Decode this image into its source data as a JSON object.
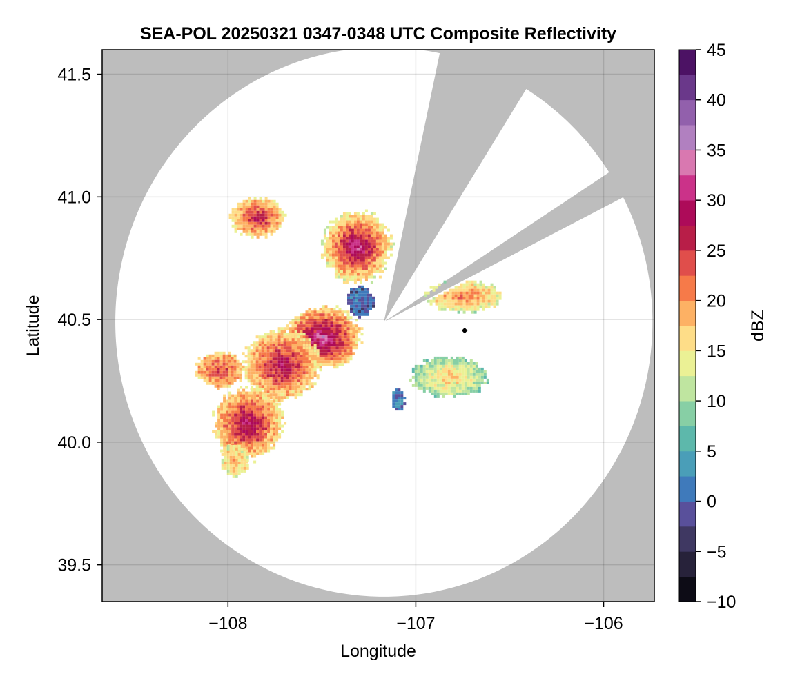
{
  "chart_data": {
    "type": "heatmap",
    "title": "SEA-POL 20250321 0347-0348 UTC Composite Reflectivity",
    "xlabel": "Longitude",
    "ylabel": "Latitude",
    "xlim": [
      -108.67,
      -105.73
    ],
    "ylim": [
      39.35,
      41.6
    ],
    "xticks": [
      -108,
      -107,
      -106
    ],
    "xtick_labels": [
      "−108",
      "−107",
      "−106"
    ],
    "yticks": [
      39.5,
      40.0,
      40.5,
      41.0,
      41.5
    ],
    "ytick_labels": [
      "39.5",
      "40.0",
      "40.5",
      "41.0",
      "41.5"
    ],
    "grid": true,
    "background_color": "#bdbdbd",
    "radar": {
      "center_lon": -107.17,
      "center_lat": 40.49,
      "max_range_lon_deg": 1.43,
      "max_range_lat_deg": 1.12,
      "blocked_sectors": [
        {
          "from_deg": 12,
          "to_deg": 32
        },
        {
          "from_deg": 57,
          "to_deg": 63
        }
      ],
      "blocked_sector_color": "#bdbdbd",
      "coverage_color": "#ffffff"
    },
    "colorbar": {
      "label": "dBZ",
      "range": [
        -10,
        45
      ],
      "step": 2.5,
      "ticks": [
        -10,
        -5,
        0,
        5,
        10,
        15,
        20,
        25,
        30,
        35,
        40,
        45
      ],
      "tick_labels": [
        "−10",
        "−5",
        "0",
        "5",
        "10",
        "15",
        "20",
        "25",
        "30",
        "35",
        "40",
        "45"
      ],
      "colormap": [
        "#000004",
        "#1f1b2e",
        "#3a3457",
        "#5a4f9a",
        "#3b7fbf",
        "#4fa8b5",
        "#66c2a5",
        "#abdda4",
        "#e6f598",
        "#fee08b",
        "#fdae61",
        "#f46d43",
        "#d53e4f",
        "#9e0142",
        "#c51b7d",
        "#de77ae",
        "#b080c0",
        "#8c5aa8",
        "#5c2a7e",
        "#3f0050"
      ]
    },
    "echo_regions": [
      {
        "lon": -107.85,
        "lat": 40.92,
        "r_lon": 0.16,
        "r_lat": 0.09,
        "peak_dbz": 28,
        "base_dbz": 14
      },
      {
        "lon": -107.32,
        "lat": 40.8,
        "r_lon": 0.2,
        "r_lat": 0.16,
        "peak_dbz": 32,
        "base_dbz": 12
      },
      {
        "lon": -107.5,
        "lat": 40.43,
        "r_lon": 0.22,
        "r_lat": 0.14,
        "peak_dbz": 33,
        "base_dbz": 14
      },
      {
        "lon": -107.72,
        "lat": 40.32,
        "r_lon": 0.22,
        "r_lat": 0.16,
        "peak_dbz": 29,
        "base_dbz": 14
      },
      {
        "lon": -107.9,
        "lat": 40.08,
        "r_lon": 0.2,
        "r_lat": 0.16,
        "peak_dbz": 30,
        "base_dbz": 14
      },
      {
        "lon": -108.05,
        "lat": 40.3,
        "r_lon": 0.14,
        "r_lat": 0.08,
        "peak_dbz": 25,
        "base_dbz": 16
      },
      {
        "lon": -106.83,
        "lat": 40.27,
        "r_lon": 0.22,
        "r_lat": 0.09,
        "peak_dbz": 18,
        "base_dbz": 8
      },
      {
        "lon": -106.75,
        "lat": 40.6,
        "r_lon": 0.22,
        "r_lat": 0.07,
        "peak_dbz": 22,
        "base_dbz": 12
      },
      {
        "lon": -107.97,
        "lat": 39.93,
        "r_lon": 0.08,
        "r_lat": 0.07,
        "peak_dbz": 18,
        "base_dbz": 14
      },
      {
        "lon": -107.3,
        "lat": 40.58,
        "r_lon": 0.08,
        "r_lat": 0.07,
        "peak_dbz": 0,
        "base_dbz": 0
      },
      {
        "lon": -107.1,
        "lat": 40.18,
        "r_lon": 0.04,
        "r_lat": 0.05,
        "peak_dbz": 1,
        "base_dbz": 1
      }
    ]
  }
}
